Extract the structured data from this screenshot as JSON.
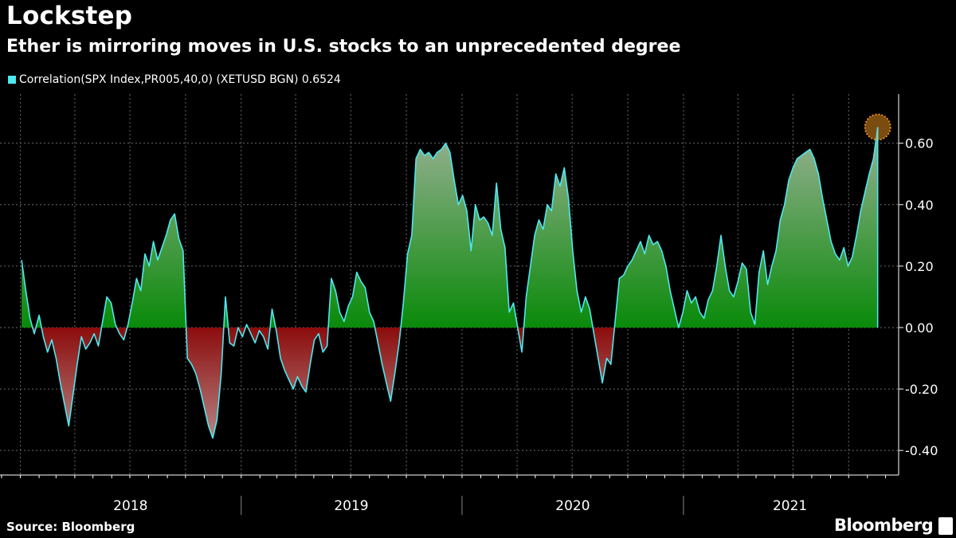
{
  "header": {
    "title": "Lockstep",
    "subtitle": "Ether is mirroring moves in U.S. stocks to an unprecedented degree",
    "legend_label": "Correlation(SPX Index,PR005,40,0) (XETUSD BGN) 0.6524"
  },
  "footer": {
    "source": "Source: Bloomberg",
    "brand": "Bloomberg"
  },
  "colors": {
    "line": "#4ee8f0",
    "positive_fill": "#0a8a0a",
    "negative_fill": "#8c1010",
    "grid": "#6a6a6a",
    "highlight": "#e08a1e"
  },
  "chart_data": {
    "type": "area",
    "title": "Lockstep",
    "subtitle": "Ether is mirroring moves in U.S. stocks to an unprecedented degree",
    "xlabel": "",
    "ylabel": "",
    "ylim": [
      -0.48,
      0.76
    ],
    "y_ticks": [
      -0.4,
      -0.2,
      0.0,
      0.2,
      0.4,
      0.6
    ],
    "y_tick_labels": [
      "-0.40",
      "-0.20",
      "0.00",
      "0.20",
      "0.40",
      "0.60"
    ],
    "x_range": [
      "2017-12-01",
      "2021-12-20"
    ],
    "year_labels": [
      "2018",
      "2019",
      "2020",
      "2021"
    ],
    "grid": true,
    "legend_position": "top-left",
    "series": [
      {
        "name": "Correlation(SPX Index,PR005,40,0) (XETUSD BGN)",
        "last_value": 0.6524,
        "points": [
          [
            "2018-01-03",
            0.22
          ],
          [
            "2018-01-10",
            0.12
          ],
          [
            "2018-01-17",
            0.03
          ],
          [
            "2018-01-24",
            -0.02
          ],
          [
            "2018-02-01",
            0.04
          ],
          [
            "2018-02-08",
            -0.03
          ],
          [
            "2018-02-15",
            -0.08
          ],
          [
            "2018-02-22",
            -0.04
          ],
          [
            "2018-03-01",
            -0.1
          ],
          [
            "2018-03-08",
            -0.18
          ],
          [
            "2018-03-15",
            -0.25
          ],
          [
            "2018-03-22",
            -0.32
          ],
          [
            "2018-03-29",
            -0.22
          ],
          [
            "2018-04-05",
            -0.12
          ],
          [
            "2018-04-12",
            -0.03
          ],
          [
            "2018-04-19",
            -0.07
          ],
          [
            "2018-04-26",
            -0.05
          ],
          [
            "2018-05-03",
            -0.02
          ],
          [
            "2018-05-10",
            -0.06
          ],
          [
            "2018-05-17",
            0.02
          ],
          [
            "2018-05-24",
            0.1
          ],
          [
            "2018-05-31",
            0.08
          ],
          [
            "2018-06-07",
            0.01
          ],
          [
            "2018-06-14",
            -0.02
          ],
          [
            "2018-06-21",
            -0.04
          ],
          [
            "2018-06-28",
            0.01
          ],
          [
            "2018-07-05",
            0.08
          ],
          [
            "2018-07-12",
            0.16
          ],
          [
            "2018-07-19",
            0.12
          ],
          [
            "2018-07-26",
            0.24
          ],
          [
            "2018-08-02",
            0.2
          ],
          [
            "2018-08-09",
            0.28
          ],
          [
            "2018-08-16",
            0.22
          ],
          [
            "2018-08-23",
            0.26
          ],
          [
            "2018-08-30",
            0.3
          ],
          [
            "2018-09-06",
            0.35
          ],
          [
            "2018-09-13",
            0.37
          ],
          [
            "2018-09-20",
            0.29
          ],
          [
            "2018-09-27",
            0.25
          ],
          [
            "2018-10-04",
            -0.1
          ],
          [
            "2018-10-11",
            -0.12
          ],
          [
            "2018-10-18",
            -0.15
          ],
          [
            "2018-10-25",
            -0.2
          ],
          [
            "2018-11-01",
            -0.26
          ],
          [
            "2018-11-08",
            -0.32
          ],
          [
            "2018-11-15",
            -0.36
          ],
          [
            "2018-11-22",
            -0.3
          ],
          [
            "2018-11-29",
            -0.15
          ],
          [
            "2018-12-06",
            0.1
          ],
          [
            "2018-12-13",
            -0.05
          ],
          [
            "2018-12-20",
            -0.06
          ],
          [
            "2018-12-27",
            0.0
          ],
          [
            "2019-01-03",
            -0.03
          ],
          [
            "2019-01-10",
            0.01
          ],
          [
            "2019-01-17",
            -0.02
          ],
          [
            "2019-01-24",
            -0.05
          ],
          [
            "2019-01-31",
            -0.01
          ],
          [
            "2019-02-07",
            -0.03
          ],
          [
            "2019-02-14",
            -0.07
          ],
          [
            "2019-02-21",
            0.06
          ],
          [
            "2019-02-28",
            -0.01
          ],
          [
            "2019-03-07",
            -0.1
          ],
          [
            "2019-03-14",
            -0.14
          ],
          [
            "2019-03-21",
            -0.17
          ],
          [
            "2019-03-28",
            -0.2
          ],
          [
            "2019-04-04",
            -0.16
          ],
          [
            "2019-04-11",
            -0.19
          ],
          [
            "2019-04-18",
            -0.21
          ],
          [
            "2019-04-25",
            -0.12
          ],
          [
            "2019-05-02",
            -0.04
          ],
          [
            "2019-05-09",
            -0.02
          ],
          [
            "2019-05-16",
            -0.08
          ],
          [
            "2019-05-23",
            -0.06
          ],
          [
            "2019-05-30",
            0.16
          ],
          [
            "2019-06-06",
            0.12
          ],
          [
            "2019-06-13",
            0.05
          ],
          [
            "2019-06-20",
            0.02
          ],
          [
            "2019-06-27",
            0.07
          ],
          [
            "2019-07-04",
            0.1
          ],
          [
            "2019-07-11",
            0.18
          ],
          [
            "2019-07-18",
            0.15
          ],
          [
            "2019-07-25",
            0.13
          ],
          [
            "2019-08-01",
            0.05
          ],
          [
            "2019-08-08",
            0.02
          ],
          [
            "2019-08-15",
            -0.05
          ],
          [
            "2019-08-22",
            -0.12
          ],
          [
            "2019-08-29",
            -0.18
          ],
          [
            "2019-09-05",
            -0.24
          ],
          [
            "2019-09-12",
            -0.15
          ],
          [
            "2019-09-19",
            -0.05
          ],
          [
            "2019-09-26",
            0.08
          ],
          [
            "2019-10-03",
            0.24
          ],
          [
            "2019-10-10",
            0.3
          ],
          [
            "2019-10-17",
            0.55
          ],
          [
            "2019-10-24",
            0.58
          ],
          [
            "2019-10-31",
            0.56
          ],
          [
            "2019-11-07",
            0.57
          ],
          [
            "2019-11-14",
            0.55
          ],
          [
            "2019-11-21",
            0.57
          ],
          [
            "2019-11-28",
            0.58
          ],
          [
            "2019-12-05",
            0.6
          ],
          [
            "2019-12-12",
            0.57
          ],
          [
            "2019-12-19",
            0.48
          ],
          [
            "2019-12-26",
            0.4
          ],
          [
            "2020-01-02",
            0.43
          ],
          [
            "2020-01-09",
            0.38
          ],
          [
            "2020-01-16",
            0.25
          ],
          [
            "2020-01-23",
            0.4
          ],
          [
            "2020-01-30",
            0.35
          ],
          [
            "2020-02-06",
            0.36
          ],
          [
            "2020-02-13",
            0.34
          ],
          [
            "2020-02-20",
            0.3
          ],
          [
            "2020-02-27",
            0.47
          ],
          [
            "2020-03-05",
            0.32
          ],
          [
            "2020-03-12",
            0.26
          ],
          [
            "2020-03-19",
            0.05
          ],
          [
            "2020-03-26",
            0.08
          ],
          [
            "2020-04-02",
            0.0
          ],
          [
            "2020-04-09",
            -0.08
          ],
          [
            "2020-04-16",
            0.1
          ],
          [
            "2020-04-23",
            0.2
          ],
          [
            "2020-04-30",
            0.3
          ],
          [
            "2020-05-07",
            0.35
          ],
          [
            "2020-05-14",
            0.32
          ],
          [
            "2020-05-21",
            0.4
          ],
          [
            "2020-05-28",
            0.38
          ],
          [
            "2020-06-04",
            0.5
          ],
          [
            "2020-06-11",
            0.46
          ],
          [
            "2020-06-18",
            0.52
          ],
          [
            "2020-06-25",
            0.42
          ],
          [
            "2020-07-02",
            0.25
          ],
          [
            "2020-07-09",
            0.12
          ],
          [
            "2020-07-16",
            0.05
          ],
          [
            "2020-07-23",
            0.1
          ],
          [
            "2020-07-30",
            0.06
          ],
          [
            "2020-08-06",
            -0.02
          ],
          [
            "2020-08-13",
            -0.1
          ],
          [
            "2020-08-20",
            -0.18
          ],
          [
            "2020-08-27",
            -0.1
          ],
          [
            "2020-09-03",
            -0.12
          ],
          [
            "2020-09-10",
            0.02
          ],
          [
            "2020-09-17",
            0.16
          ],
          [
            "2020-09-24",
            0.17
          ],
          [
            "2020-10-01",
            0.2
          ],
          [
            "2020-10-08",
            0.22
          ],
          [
            "2020-10-15",
            0.25
          ],
          [
            "2020-10-22",
            0.28
          ],
          [
            "2020-10-29",
            0.24
          ],
          [
            "2020-11-05",
            0.3
          ],
          [
            "2020-11-12",
            0.27
          ],
          [
            "2020-11-19",
            0.28
          ],
          [
            "2020-11-26",
            0.25
          ],
          [
            "2020-12-03",
            0.2
          ],
          [
            "2020-12-10",
            0.12
          ],
          [
            "2020-12-17",
            0.06
          ],
          [
            "2020-12-24",
            0.0
          ],
          [
            "2020-12-31",
            0.05
          ],
          [
            "2021-01-07",
            0.12
          ],
          [
            "2021-01-14",
            0.08
          ],
          [
            "2021-01-21",
            0.1
          ],
          [
            "2021-01-28",
            0.05
          ],
          [
            "2021-02-04",
            0.03
          ],
          [
            "2021-02-11",
            0.09
          ],
          [
            "2021-02-18",
            0.12
          ],
          [
            "2021-02-25",
            0.2
          ],
          [
            "2021-03-04",
            0.3
          ],
          [
            "2021-03-11",
            0.2
          ],
          [
            "2021-03-18",
            0.12
          ],
          [
            "2021-03-25",
            0.1
          ],
          [
            "2021-04-01",
            0.15
          ],
          [
            "2021-04-08",
            0.21
          ],
          [
            "2021-04-15",
            0.19
          ],
          [
            "2021-04-22",
            0.05
          ],
          [
            "2021-04-29",
            0.01
          ],
          [
            "2021-05-06",
            0.18
          ],
          [
            "2021-05-13",
            0.25
          ],
          [
            "2021-05-20",
            0.14
          ],
          [
            "2021-05-27",
            0.2
          ],
          [
            "2021-06-03",
            0.25
          ],
          [
            "2021-06-10",
            0.35
          ],
          [
            "2021-06-17",
            0.4
          ],
          [
            "2021-06-24",
            0.48
          ],
          [
            "2021-07-01",
            0.52
          ],
          [
            "2021-07-08",
            0.55
          ],
          [
            "2021-07-15",
            0.56
          ],
          [
            "2021-07-22",
            0.57
          ],
          [
            "2021-07-29",
            0.58
          ],
          [
            "2021-08-05",
            0.55
          ],
          [
            "2021-08-12",
            0.5
          ],
          [
            "2021-08-19",
            0.42
          ],
          [
            "2021-08-26",
            0.35
          ],
          [
            "2021-09-02",
            0.28
          ],
          [
            "2021-09-09",
            0.24
          ],
          [
            "2021-09-16",
            0.22
          ],
          [
            "2021-09-23",
            0.26
          ],
          [
            "2021-09-30",
            0.2
          ],
          [
            "2021-10-07",
            0.23
          ],
          [
            "2021-10-14",
            0.3
          ],
          [
            "2021-10-21",
            0.38
          ],
          [
            "2021-10-28",
            0.44
          ],
          [
            "2021-11-04",
            0.5
          ],
          [
            "2021-11-11",
            0.55
          ],
          [
            "2021-11-18",
            0.6524
          ]
        ]
      }
    ],
    "highlight_point": [
      "2021-11-18",
      0.6524
    ]
  }
}
